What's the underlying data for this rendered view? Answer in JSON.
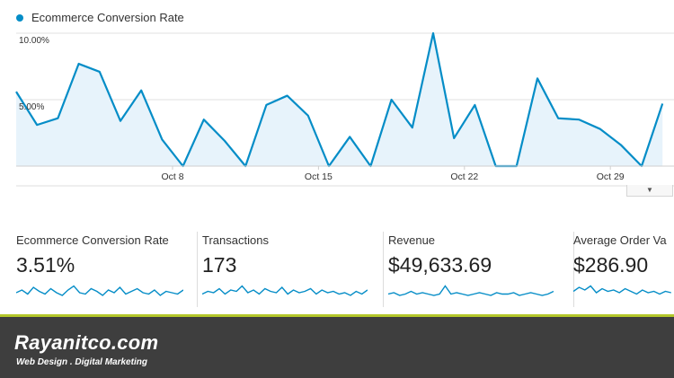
{
  "chart_data": {
    "type": "area",
    "series": [
      {
        "name": "Ecommerce Conversion Rate",
        "values": [
          5.6,
          3.1,
          3.6,
          7.7,
          7.1,
          3.4,
          5.7,
          2.0,
          0,
          3.5,
          1.9,
          0,
          4.6,
          5.3,
          3.8,
          0,
          2.2,
          0,
          5.0,
          2.9,
          10.0,
          2.1,
          4.6,
          0,
          0,
          6.6,
          3.6,
          3.5,
          2.8,
          1.6,
          0,
          4.7
        ]
      }
    ],
    "x_ticks": [
      "Oct 8",
      "Oct 15",
      "Oct 22",
      "Oct 29"
    ],
    "y_ticks": [
      "10.00%",
      "5.00%"
    ],
    "ylim": [
      0,
      10
    ],
    "grid": true,
    "color": "#058dc7",
    "fill": "#e7f3fb"
  },
  "chart": {
    "legend_label": "Ecommerce Conversion Rate",
    "dropdown_icon": "triangle-down-icon"
  },
  "metrics": [
    {
      "label": "Ecommerce Conversion Rate",
      "value": "3.51%",
      "spark": [
        0.4,
        0.6,
        0.3,
        0.8,
        0.5,
        0.3,
        0.7,
        0.4,
        0.2,
        0.6,
        0.9,
        0.4,
        0.3,
        0.7,
        0.5,
        0.2,
        0.6,
        0.4,
        0.8,
        0.3,
        0.5,
        0.7,
        0.4,
        0.3,
        0.6,
        0.2,
        0.5,
        0.4,
        0.3,
        0.6
      ]
    },
    {
      "label": "Transactions",
      "value": "173",
      "spark": [
        0.3,
        0.5,
        0.4,
        0.7,
        0.3,
        0.6,
        0.5,
        0.9,
        0.4,
        0.6,
        0.3,
        0.7,
        0.5,
        0.4,
        0.8,
        0.3,
        0.6,
        0.4,
        0.5,
        0.7,
        0.3,
        0.6,
        0.4,
        0.5,
        0.3,
        0.4,
        0.2,
        0.5,
        0.3,
        0.6
      ]
    },
    {
      "label": "Revenue",
      "value": "$49,633.69",
      "spark": [
        0.3,
        0.4,
        0.2,
        0.3,
        0.5,
        0.3,
        0.4,
        0.3,
        0.2,
        0.3,
        0.9,
        0.3,
        0.4,
        0.3,
        0.2,
        0.3,
        0.4,
        0.3,
        0.2,
        0.4,
        0.3,
        0.3,
        0.4,
        0.2,
        0.3,
        0.4,
        0.3,
        0.2,
        0.3,
        0.5
      ]
    },
    {
      "label": "Average Order Va",
      "value": "$286.90",
      "spark": [
        0.5,
        0.8,
        0.6,
        0.9,
        0.4,
        0.7,
        0.5,
        0.6,
        0.4,
        0.7,
        0.5,
        0.3,
        0.6,
        0.4,
        0.5,
        0.3,
        0.5,
        0.4
      ]
    }
  ],
  "footer": {
    "brand": "Rayanitco.com",
    "tagline": "Web Design . Digital Marketing"
  }
}
